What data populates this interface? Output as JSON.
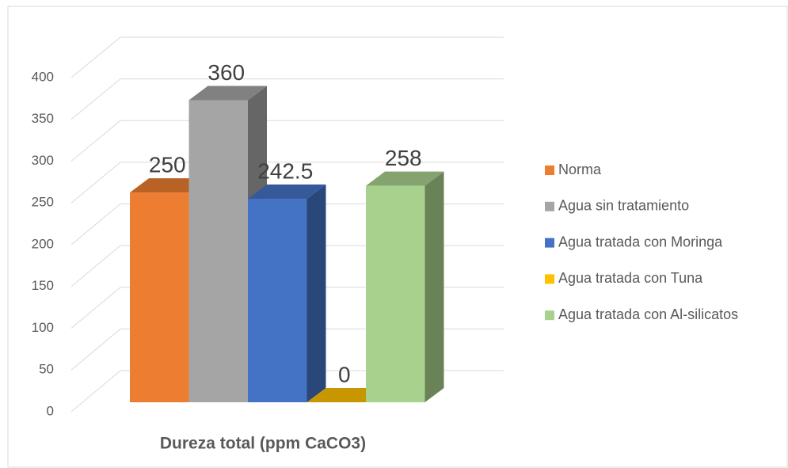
{
  "chart_data": {
    "type": "bar3d",
    "categories": [
      "Dureza total (ppm CaCO3)"
    ],
    "series": [
      {
        "name": "Norma",
        "color": "#ed7d31",
        "values": [
          250
        ]
      },
      {
        "name": "Agua sin tratamiento",
        "color": "#a5a5a5",
        "values": [
          360
        ]
      },
      {
        "name": "Agua tratada con Moringa",
        "color": "#4472c4",
        "values": [
          242.5
        ]
      },
      {
        "name": "Agua tratada con Tuna",
        "color": "#ffc000",
        "values": [
          0
        ]
      },
      {
        "name": "Agua tratada con Al-silicatos",
        "color": "#a9d18e",
        "values": [
          258
        ]
      }
    ],
    "ylim": [
      0,
      400
    ],
    "yticks": [
      0,
      50,
      100,
      150,
      200,
      250,
      300,
      350,
      400
    ],
    "grid": true,
    "legend": "right"
  }
}
